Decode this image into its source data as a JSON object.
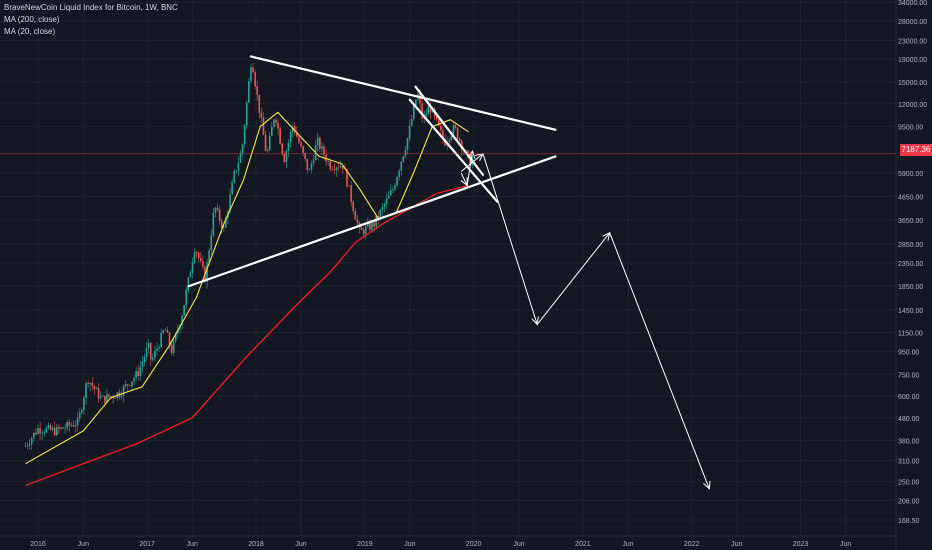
{
  "legend": {
    "title": "BraveNewCoin Liquid Index for Bitcoin, 1W, BNC",
    "ma200": "MA (200, close)",
    "ma20": "MA (20, close)"
  },
  "current_price": "7187.36",
  "colors": {
    "background": "#131722",
    "grid": "#1e222d",
    "up": "#26a69a",
    "down": "#ef5350",
    "ma200": "#e11d25",
    "ma20": "#f5e94a",
    "trendline": "#ffffff",
    "price_line": "#f23645"
  },
  "chart_data": {
    "type": "candlestick",
    "title": "BraveNewCoin Liquid Index for Bitcoin, 1W, BNC",
    "y_scale": "log",
    "y_ticks": [
      "34000.00",
      "28000.00",
      "23000.00",
      "19000.00",
      "15000.00",
      "12000.00",
      "9500.00",
      "7187.36",
      "5900.00",
      "4650.00",
      "3650.00",
      "2850.00",
      "2350.00",
      "1850.00",
      "1450.00",
      "1150.00",
      "950.00",
      "750.00",
      "600.00",
      "480.00",
      "380.00",
      "310.00",
      "250.00",
      "206.00",
      "168.50"
    ],
    "x_ticks": [
      "2016",
      "Jun",
      "2017",
      "Jun",
      "2018",
      "Jun",
      "2019",
      "Jun",
      "2020",
      "Jun",
      "2021",
      "Jun",
      "2022",
      "Jun",
      "2023",
      "Jun"
    ],
    "series": [
      {
        "name": "MA (200, close)",
        "type": "line"
      },
      {
        "name": "MA (20, close)",
        "type": "line"
      }
    ],
    "price_path": [
      [
        "2015-11-20",
        360
      ],
      [
        "2016-01-01",
        430
      ],
      [
        "2016-03-01",
        420
      ],
      [
        "2016-05-15",
        460
      ],
      [
        "2016-06-15",
        720
      ],
      [
        "2016-08-01",
        580
      ],
      [
        "2016-10-01",
        620
      ],
      [
        "2016-12-01",
        760
      ],
      [
        "2017-01-05",
        1000
      ],
      [
        "2017-01-15",
        850
      ],
      [
        "2017-03-01",
        1200
      ],
      [
        "2017-03-25",
        950
      ],
      [
        "2017-05-01",
        1450
      ],
      [
        "2017-06-10",
        2800
      ],
      [
        "2017-07-15",
        2000
      ],
      [
        "2017-08-15",
        4200
      ],
      [
        "2017-09-15",
        3300
      ],
      [
        "2017-10-20",
        5800
      ],
      [
        "2017-11-15",
        7500
      ],
      [
        "2017-12-17",
        19500
      ],
      [
        "2018-01-01",
        14000
      ],
      [
        "2018-02-06",
        7000
      ],
      [
        "2018-03-05",
        11000
      ],
      [
        "2018-04-05",
        6800
      ],
      [
        "2018-05-05",
        9700
      ],
      [
        "2018-06-28",
        5900
      ],
      [
        "2018-07-25",
        8200
      ],
      [
        "2018-09-05",
        6400
      ],
      [
        "2018-10-20",
        6400
      ],
      [
        "2018-11-20",
        4300
      ],
      [
        "2018-12-15",
        3200
      ],
      [
        "2019-02-01",
        3500
      ],
      [
        "2019-04-05",
        5000
      ],
      [
        "2019-05-25",
        8500
      ],
      [
        "2019-06-26",
        13500
      ],
      [
        "2019-07-15",
        10000
      ],
      [
        "2019-08-05",
        11800
      ],
      [
        "2019-09-25",
        8100
      ],
      [
        "2019-10-28",
        9400
      ],
      [
        "2019-12-18",
        6600
      ],
      [
        "2020-01-01",
        7187
      ]
    ],
    "ma20": [
      [
        "2015-11-20",
        300
      ],
      [
        "2016-06-01",
        420
      ],
      [
        "2016-09-01",
        590
      ],
      [
        "2016-12-15",
        660
      ],
      [
        "2017-03-15",
        1000
      ],
      [
        "2017-06-15",
        1650
      ],
      [
        "2017-09-15",
        3500
      ],
      [
        "2017-11-20",
        5500
      ],
      [
        "2018-01-15",
        9500
      ],
      [
        "2018-03-15",
        11000
      ],
      [
        "2018-05-15",
        9000
      ],
      [
        "2018-08-01",
        7000
      ],
      [
        "2018-10-15",
        6500
      ],
      [
        "2018-12-15",
        5000
      ],
      [
        "2019-02-15",
        3700
      ],
      [
        "2019-04-15",
        3900
      ],
      [
        "2019-06-15",
        6000
      ],
      [
        "2019-08-15",
        9500
      ],
      [
        "2019-10-15",
        10200
      ],
      [
        "2019-12-15",
        9000
      ]
    ],
    "ma200": [
      [
        "2015-11-20",
        240
      ],
      [
        "2016-06-01",
        300
      ],
      [
        "2016-12-01",
        370
      ],
      [
        "2017-06-01",
        480
      ],
      [
        "2017-12-01",
        900
      ],
      [
        "2018-06-01",
        1600
      ],
      [
        "2018-09-01",
        2100
      ],
      [
        "2018-12-01",
        2900
      ],
      [
        "2019-03-01",
        3500
      ],
      [
        "2019-06-01",
        4100
      ],
      [
        "2019-09-01",
        4800
      ],
      [
        "2019-12-15",
        5200
      ]
    ],
    "drawings": {
      "trendlines": [
        [
          [
            "2017-12-15",
            19500
          ],
          [
            "2020-10-01",
            9200
          ]
        ],
        [
          [
            "2017-05-20",
            1850
          ],
          [
            "2020-10-01",
            7000
          ]
        ],
        [
          [
            "2019-06-01",
            12500
          ],
          [
            "2020-03-20",
            4400
          ]
        ],
        [
          [
            "2019-06-20",
            14300
          ],
          [
            "2020-02-01",
            5800
          ]
        ]
      ],
      "projection": [
        [
          "2019-11-20",
          6000
        ],
        [
          "2020-02-01",
          7200
        ],
        [
          "2020-08-01",
          1250
        ],
        [
          "2021-04-01",
          3200
        ],
        [
          "2022-03-01",
          232
        ]
      ],
      "small_arrows": [
        [
          [
            "2019-11-20",
            5900
          ],
          [
            "2019-12-10",
            5200
          ]
        ],
        [
          [
            "2019-12-10",
            5200
          ],
          [
            "2019-12-28",
            7400
          ]
        ]
      ]
    }
  }
}
